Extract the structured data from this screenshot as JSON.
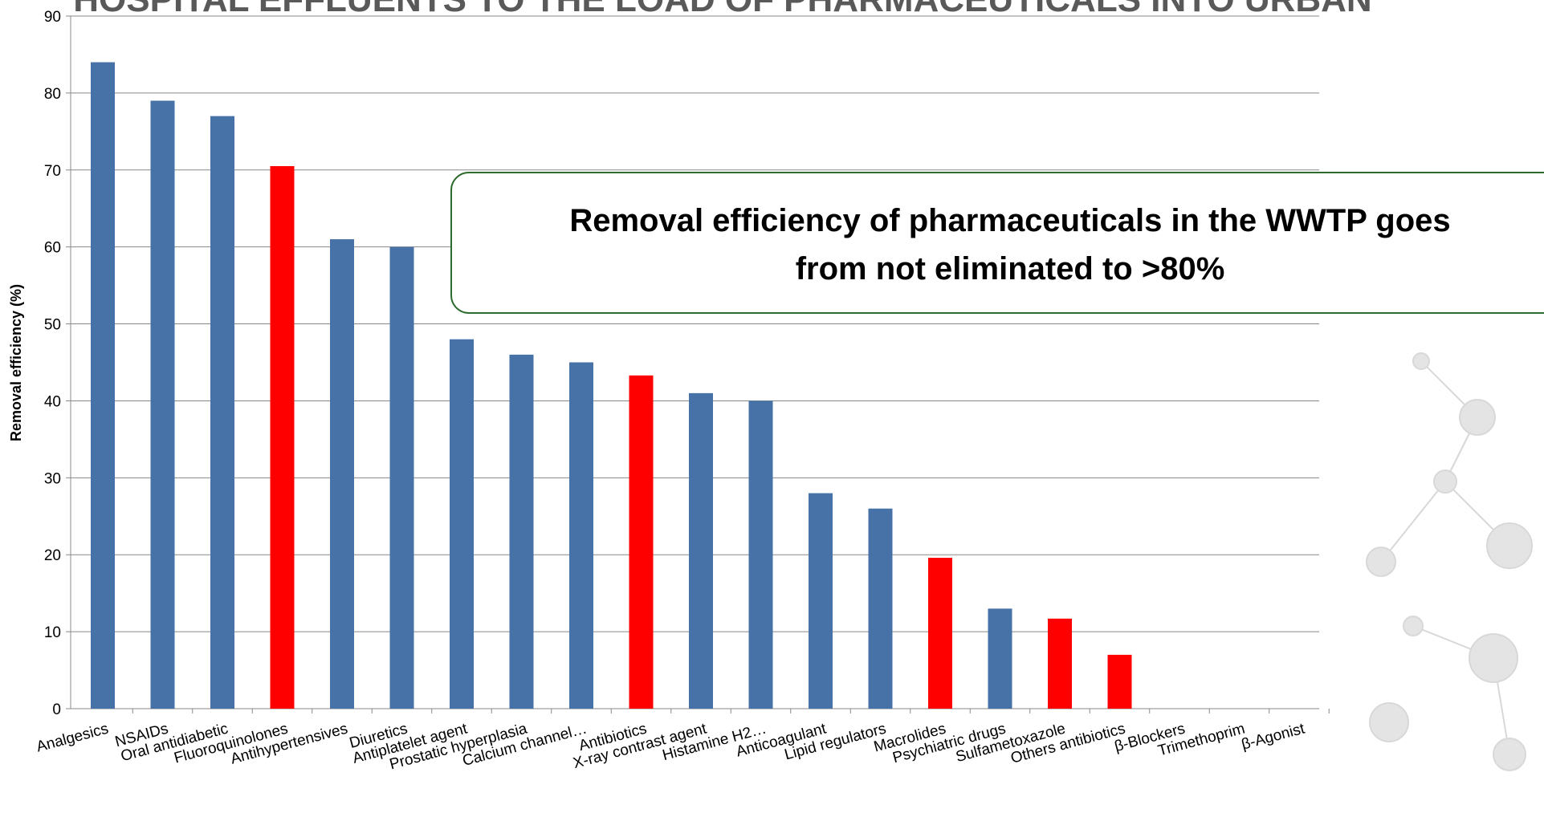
{
  "chart_data": {
    "type": "bar",
    "title": "HOSPITAL EFFLUENTS TO THE LOAD OF PHARMACEUTICALS INTO URBAN",
    "y_label": "Removal efficiency (%)",
    "categories": [
      "Analgesics",
      "NSAIDs",
      "Oral antidiabetic",
      "Fluoroquinolones",
      "Antihypertensives",
      "Diuretics",
      "Antiplatelet agent",
      "Prostatic hyperplasia",
      "Calcium channel…",
      "Antibiotics",
      "X-ray contrast agent",
      "Histamine H2…",
      "Anticoagulant",
      "Lipid regulators",
      "Macrolides",
      "Psychiatric drugs",
      "Sulfametoxazole",
      "Others antibiotics",
      "β-Blockers",
      "Trimethoprim",
      "β-Agonist"
    ],
    "values": [
      84,
      79,
      77,
      70.5,
      61,
      60,
      48,
      46,
      45,
      43.3,
      41,
      40,
      28,
      26,
      19.6,
      13,
      11.7,
      7,
      0,
      0,
      0
    ],
    "colors": [
      "#4672a8",
      "#4672a8",
      "#4672a8",
      "#ff0000",
      "#4672a8",
      "#4672a8",
      "#4672a8",
      "#4672a8",
      "#4672a8",
      "#ff0000",
      "#4672a8",
      "#4672a8",
      "#4672a8",
      "#4672a8",
      "#ff0000",
      "#4672a8",
      "#ff0000",
      "#ff0000",
      "#4672a8",
      "#4672a8",
      "#4672a8"
    ],
    "ylim": [
      0,
      90
    ],
    "yticks": [
      0,
      10,
      20,
      30,
      40,
      50,
      60,
      70,
      80,
      90
    ],
    "grid": true,
    "annotation": [
      "Removal efficiency of pharmaceuticals in the WWTP goes",
      "from not eliminated to >80%"
    ]
  }
}
